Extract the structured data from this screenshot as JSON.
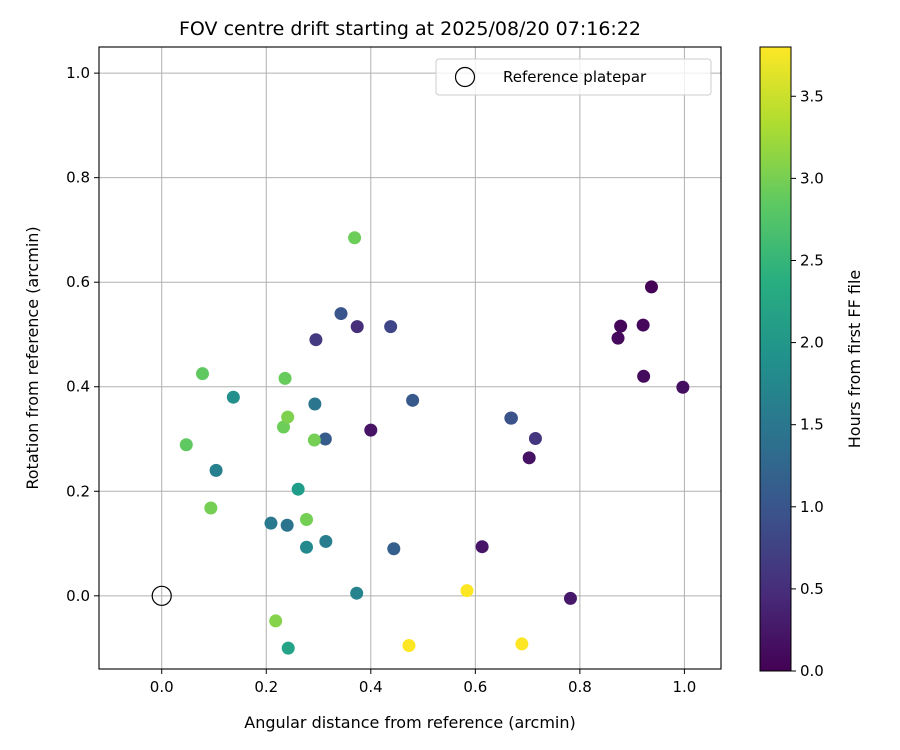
{
  "chart_data": {
    "type": "scatter",
    "title": "FOV centre drift starting at 2025/08/20 07:16:22",
    "xlabel": "Angular distance from reference (arcmin)",
    "ylabel": "Rotation from reference (arcmin)",
    "xlim": [
      -0.12,
      1.07
    ],
    "ylim": [
      -0.14,
      1.05
    ],
    "xticks": [
      0.0,
      0.2,
      0.4,
      0.6,
      0.8,
      1.0
    ],
    "xtick_labels": [
      "0.0",
      "0.2",
      "0.4",
      "0.6",
      "0.8",
      "1.0"
    ],
    "yticks": [
      0.0,
      0.2,
      0.4,
      0.6,
      0.8,
      1.0
    ],
    "ytick_labels": [
      "0.0",
      "0.2",
      "0.4",
      "0.6",
      "0.8",
      "1.0"
    ],
    "grid": true,
    "colormap": "viridis",
    "colorbar": {
      "label": "Hours from first FF file",
      "range": [
        0.0,
        3.8
      ],
      "ticks": [
        0.0,
        0.5,
        1.0,
        1.5,
        2.0,
        2.5,
        3.0,
        3.5
      ],
      "tick_labels": [
        "0.0",
        "0.5",
        "1.0",
        "1.5",
        "2.0",
        "2.5",
        "3.0",
        "3.5"
      ]
    },
    "reference": {
      "name": "Reference platepar",
      "x": 0.0,
      "y": 0.0
    },
    "legend": {
      "placement": "top-right",
      "entries": [
        "Reference platepar"
      ]
    },
    "points": [
      {
        "x": 0.937,
        "y": 0.591,
        "c": 0.02
      },
      {
        "x": 0.878,
        "y": 0.516,
        "c": 0.05
      },
      {
        "x": 0.921,
        "y": 0.518,
        "c": 0.08
      },
      {
        "x": 0.873,
        "y": 0.493,
        "c": 0.1
      },
      {
        "x": 0.922,
        "y": 0.42,
        "c": 0.12
      },
      {
        "x": 0.997,
        "y": 0.399,
        "c": 0.15
      },
      {
        "x": 0.703,
        "y": 0.264,
        "c": 0.18
      },
      {
        "x": 0.4,
        "y": 0.317,
        "c": 0.2
      },
      {
        "x": 0.613,
        "y": 0.094,
        "c": 0.22
      },
      {
        "x": 0.782,
        "y": -0.005,
        "c": 0.25
      },
      {
        "x": 0.715,
        "y": 0.301,
        "c": 0.6
      },
      {
        "x": 0.374,
        "y": 0.515,
        "c": 0.5
      },
      {
        "x": 0.295,
        "y": 0.49,
        "c": 0.65
      },
      {
        "x": 0.438,
        "y": 0.515,
        "c": 0.8
      },
      {
        "x": 0.668,
        "y": 0.34,
        "c": 0.9
      },
      {
        "x": 0.669,
        "y": 0.34,
        "c": 0.95
      },
      {
        "x": 0.343,
        "y": 0.54,
        "c": 1.0
      },
      {
        "x": 0.48,
        "y": 0.374,
        "c": 1.05
      },
      {
        "x": 0.313,
        "y": 0.3,
        "c": 1.1
      },
      {
        "x": 0.444,
        "y": 0.09,
        "c": 1.15
      },
      {
        "x": 0.293,
        "y": 0.367,
        "c": 1.5
      },
      {
        "x": 0.24,
        "y": 0.135,
        "c": 1.45
      },
      {
        "x": 0.209,
        "y": 0.139,
        "c": 1.55
      },
      {
        "x": 0.314,
        "y": 0.104,
        "c": 1.6
      },
      {
        "x": 0.104,
        "y": 0.24,
        "c": 1.65
      },
      {
        "x": 0.373,
        "y": 0.005,
        "c": 1.7
      },
      {
        "x": 0.277,
        "y": 0.093,
        "c": 1.8
      },
      {
        "x": 0.137,
        "y": 0.38,
        "c": 1.9
      },
      {
        "x": 0.261,
        "y": 0.204,
        "c": 2.1
      },
      {
        "x": 0.242,
        "y": -0.1,
        "c": 2.2
      },
      {
        "x": 0.047,
        "y": 0.289,
        "c": 2.85
      },
      {
        "x": 0.078,
        "y": 0.425,
        "c": 2.85
      },
      {
        "x": 0.094,
        "y": 0.168,
        "c": 3.0
      },
      {
        "x": 0.233,
        "y": 0.323,
        "c": 2.95
      },
      {
        "x": 0.236,
        "y": 0.416,
        "c": 2.9
      },
      {
        "x": 0.241,
        "y": 0.342,
        "c": 3.05
      },
      {
        "x": 0.292,
        "y": 0.298,
        "c": 3.0
      },
      {
        "x": 0.277,
        "y": 0.146,
        "c": 3.0
      },
      {
        "x": 0.369,
        "y": 0.685,
        "c": 2.95
      },
      {
        "x": 0.218,
        "y": -0.048,
        "c": 3.1
      },
      {
        "x": 0.584,
        "y": 0.01,
        "c": 3.8
      },
      {
        "x": 0.473,
        "y": -0.095,
        "c": 3.8
      },
      {
        "x": 0.689,
        "y": -0.092,
        "c": 3.8
      }
    ]
  }
}
